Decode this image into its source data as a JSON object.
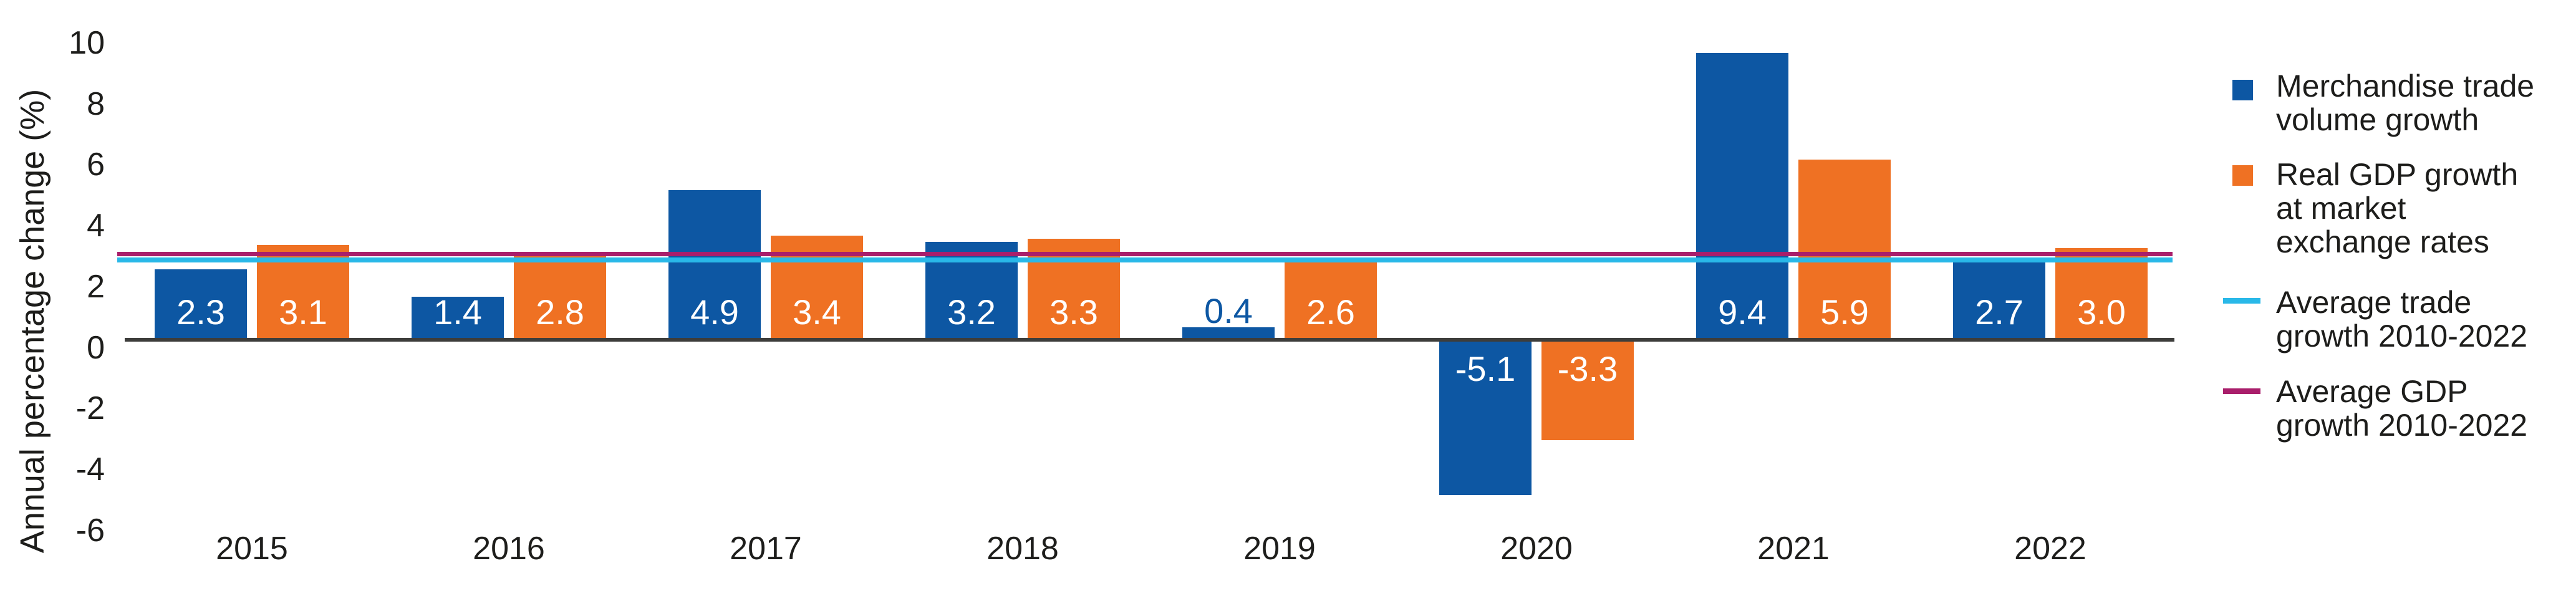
{
  "chart_data": {
    "type": "bar",
    "title": "",
    "ylabel": "Annual percentage change (%)",
    "xlabel": "",
    "categories": [
      "2015",
      "2016",
      "2017",
      "2018",
      "2019",
      "2020",
      "2021",
      "2022"
    ],
    "series": [
      {
        "name": "Merchandise trade volume growth",
        "color": "#0d57a3",
        "values": [
          2.3,
          1.4,
          4.9,
          3.2,
          0.4,
          -5.1,
          9.4,
          2.7
        ]
      },
      {
        "name": "Real GDP growth at market exchange rates",
        "color": "#ef7123",
        "values": [
          3.1,
          2.8,
          3.4,
          3.3,
          2.6,
          -3.3,
          5.9,
          3.0
        ]
      }
    ],
    "reference_lines": [
      {
        "name": "Average trade growth 2010-2022",
        "color": "#29b8e8",
        "value": 2.6
      },
      {
        "name": "Average GDP growth 2010-2022",
        "color": "#a91e6b",
        "value": 2.8
      }
    ],
    "ylim": [
      -6,
      10
    ],
    "yticks": [
      10,
      8,
      6,
      4,
      2,
      0,
      -2,
      -4,
      -6
    ],
    "grid": false,
    "legend_position": "right",
    "axis_color": "#3d3d3b",
    "text_color": "#1d1d1b"
  },
  "legend": {
    "items": [
      {
        "id": "merchandise-trade",
        "swatch": "square",
        "color": "#0d57a3",
        "lines": [
          "Merchandise trade",
          "volume growth"
        ]
      },
      {
        "id": "real-gdp",
        "swatch": "square",
        "color": "#ef7123",
        "lines": [
          "Real GDP growth",
          "at market",
          "exchange rates"
        ]
      },
      {
        "id": "average-trade-line",
        "swatch": "line",
        "color": "#29b8e8",
        "lines": [
          "Average trade",
          "growth 2010-2022"
        ]
      },
      {
        "id": "average-gdp-line",
        "swatch": "line",
        "color": "#a91e6b",
        "lines": [
          "Average GDP",
          "growth 2010-2022"
        ]
      }
    ]
  }
}
